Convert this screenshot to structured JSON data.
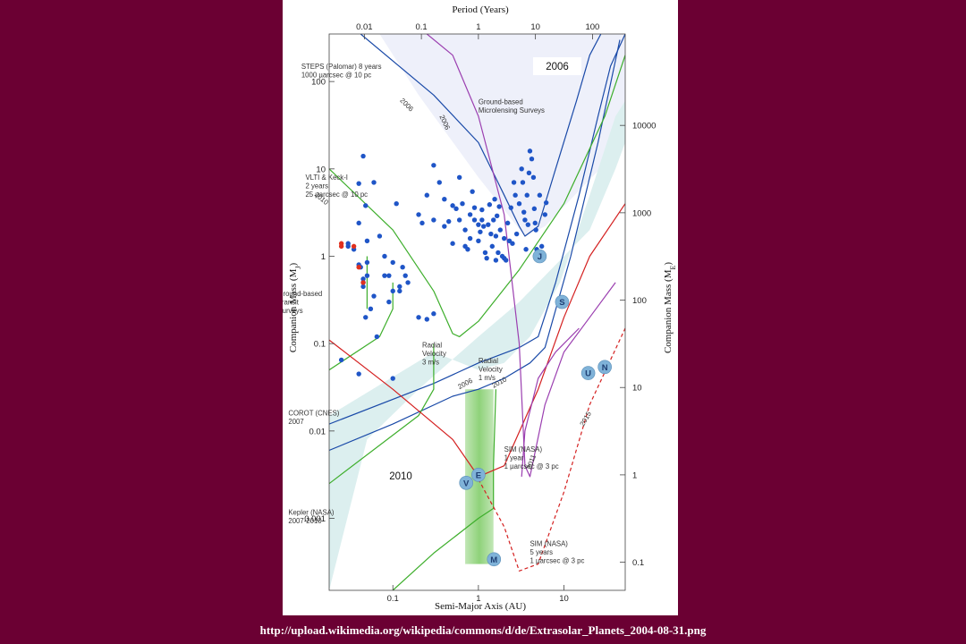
{
  "caption": "http://upload.wikimedia.org/wikipedia/commons/d/de/Extrasolar_Planets_2004-08-31.png",
  "colors": {
    "background": "#6b0033",
    "panel": "#ffffff",
    "plot_fill": "#eef0fa",
    "teal_fill": "#dcefef",
    "planet_dot": "#1f55c7",
    "highlight_dot": "#e0301e",
    "solar_planet": "#7fb2d8",
    "blue_curve": "#1a4aa8",
    "green_curve": "#3dae2b",
    "red_curve": "#d42020",
    "purple_curve": "#9b3fb0",
    "habitable_band": "#8fd27a"
  },
  "chart_data": {
    "type": "scatter",
    "title": "",
    "top_xlabel": "Period (Years)",
    "xlabel": "Semi-Major Axis (AU)",
    "ylabel": "Companion Mass (M",
    "ylabel_sub": "J",
    "y2label": "Companion Mass (M",
    "y2label_sub": "E",
    "xlog": true,
    "ylog": true,
    "xlim": [
      0.018,
      52
    ],
    "ylim": [
      0.00015,
      350
    ],
    "x_ticks": [
      {
        "v": 0.1,
        "label": "0.1"
      },
      {
        "v": 1,
        "label": "1"
      },
      {
        "v": 10,
        "label": "10"
      }
    ],
    "y_ticks": [
      {
        "v": 0.001,
        "label": "0.001"
      },
      {
        "v": 0.01,
        "label": "0.01"
      },
      {
        "v": 0.1,
        "label": "0.1"
      },
      {
        "v": 1,
        "label": "1"
      },
      {
        "v": 10,
        "label": "10"
      },
      {
        "v": 100,
        "label": "100"
      }
    ],
    "top_ticks": [
      {
        "v": 0.01,
        "label": "0.01"
      },
      {
        "v": 0.1,
        "label": "0.1"
      },
      {
        "v": 1,
        "label": "1"
      },
      {
        "v": 10,
        "label": "10"
      },
      {
        "v": 100,
        "label": "100"
      }
    ],
    "right_ticks": [
      {
        "v": 0.1,
        "label": "0.1"
      },
      {
        "v": 1,
        "label": "1"
      },
      {
        "v": 10,
        "label": "10"
      },
      {
        "v": 100,
        "label": "100"
      },
      {
        "v": 1000,
        "label": "1000"
      },
      {
        "v": 10000,
        "label": "10000"
      }
    ],
    "year_labels": {
      "y2006": "2006",
      "y2010": "2010"
    },
    "regions": {
      "upper": [
        [
          0.018,
          350
        ],
        [
          52,
          350
        ],
        [
          52,
          20
        ],
        [
          6,
          2.2
        ],
        [
          3.5,
          1.7
        ],
        [
          1,
          8
        ],
        [
          0.2,
          70
        ],
        [
          0.07,
          350
        ]
      ],
      "teal": [
        [
          0.018,
          0.00015
        ],
        [
          0.018,
          0.015
        ],
        [
          0.3,
          0.08
        ],
        [
          1,
          0.05
        ],
        [
          2,
          0.06
        ],
        [
          4,
          0.12
        ],
        [
          9,
          0.5
        ],
        [
          20,
          5
        ],
        [
          40,
          40
        ],
        [
          52,
          60
        ],
        [
          52,
          20
        ],
        [
          40,
          10
        ],
        [
          20,
          2
        ],
        [
          6,
          0.6
        ],
        [
          3,
          0.3
        ],
        [
          1,
          0.12
        ],
        [
          0.2,
          0.03
        ],
        [
          0.05,
          0.008
        ],
        [
          0.018,
          0.00015
        ]
      ]
    },
    "curves": [
      {
        "color": "#1a4aa8",
        "width": 1.2,
        "dash": false,
        "points": [
          [
            0.042,
            350
          ],
          [
            0.3,
            70
          ],
          [
            1,
            20
          ],
          [
            2,
            5
          ],
          [
            3,
            2.2
          ],
          [
            3.5,
            1.7
          ],
          [
            5,
            2.2
          ],
          [
            8,
            10
          ],
          [
            14,
            60
          ],
          [
            20,
            200
          ],
          [
            27,
            350
          ]
        ]
      },
      {
        "color": "#1a4aa8",
        "width": 1.2,
        "dash": false,
        "points": [
          [
            0.018,
            0.012
          ],
          [
            0.3,
            0.035
          ],
          [
            1,
            0.06
          ],
          [
            3,
            0.09
          ],
          [
            5,
            0.12
          ],
          [
            8,
            0.5
          ],
          [
            15,
            5
          ],
          [
            25,
            40
          ],
          [
            35,
            150
          ],
          [
            52,
            350
          ]
        ]
      },
      {
        "color": "#1a4aa8",
        "width": 1.2,
        "dash": false,
        "points": [
          [
            0.018,
            0.006
          ],
          [
            0.1,
            0.012
          ],
          [
            0.5,
            0.025
          ],
          [
            1,
            0.03
          ],
          [
            2,
            0.04
          ],
          [
            4,
            0.06
          ],
          [
            6,
            0.09
          ],
          [
            12,
            1
          ],
          [
            25,
            20
          ],
          [
            45,
            300
          ]
        ]
      },
      {
        "color": "#3dae2b",
        "width": 1.2,
        "dash": false,
        "points": [
          [
            0.018,
            10
          ],
          [
            0.1,
            2
          ],
          [
            0.3,
            0.4
          ],
          [
            0.5,
            0.13
          ],
          [
            0.6,
            0.12
          ],
          [
            1,
            0.18
          ],
          [
            3,
            0.7
          ],
          [
            10,
            4
          ],
          [
            30,
            40
          ],
          [
            52,
            200
          ]
        ]
      },
      {
        "color": "#3dae2b",
        "width": 1.2,
        "dash": false,
        "points": [
          [
            0.018,
            0.05
          ],
          [
            0.07,
            0.12
          ],
          [
            0.1,
            0.25
          ],
          [
            0.1,
            0.5
          ]
        ]
      },
      {
        "color": "#3dae2b",
        "width": 1.2,
        "dash": false,
        "points": [
          [
            0.018,
            0.0025
          ],
          [
            0.2,
            0.015
          ],
          [
            0.3,
            0.03
          ],
          [
            0.3,
            0.1
          ]
        ]
      },
      {
        "color": "#3dae2b",
        "width": 1.2,
        "dash": false,
        "points": [
          [
            0.1,
            0.00015
          ],
          [
            0.3,
            0.0004
          ],
          [
            1,
            0.001
          ],
          [
            1.5,
            0.0013
          ],
          [
            1.5,
            0.004
          ],
          [
            1.6,
            0.03
          ]
        ]
      },
      {
        "color": "#3dae2b",
        "width": 1.2,
        "dash": false,
        "points": [
          [
            0.05,
            0.25
          ],
          [
            0.05,
            1
          ]
        ]
      },
      {
        "color": "#d42020",
        "width": 1.2,
        "dash": false,
        "points": [
          [
            0.018,
            0.11
          ],
          [
            0.1,
            0.03
          ],
          [
            0.5,
            0.008
          ],
          [
            1,
            0.003
          ],
          [
            2,
            0.004
          ],
          [
            5,
            0.03
          ],
          [
            10,
            0.2
          ],
          [
            20,
            1
          ],
          [
            52,
            4
          ]
        ]
      },
      {
        "color": "#d42020",
        "width": 1.2,
        "dash": true,
        "points": [
          [
            1,
            0.0028
          ],
          [
            2,
            0.0008
          ],
          [
            3,
            0.00025
          ],
          [
            5,
            0.0003
          ],
          [
            10,
            0.002
          ],
          [
            20,
            0.02
          ],
          [
            52,
            0.15
          ]
        ]
      },
      {
        "color": "#9b3fb0",
        "width": 1.2,
        "dash": false,
        "points": [
          [
            0.25,
            350
          ],
          [
            0.5,
            200
          ],
          [
            1,
            40
          ],
          [
            2,
            3
          ],
          [
            3,
            0.1
          ],
          [
            3.5,
            0.004
          ],
          [
            4,
            0.003
          ],
          [
            6,
            0.02
          ],
          [
            10,
            0.08
          ],
          [
            20,
            0.2
          ],
          [
            40,
            0.5
          ]
        ]
      },
      {
        "color": "#9b3fb0",
        "width": 1.2,
        "dash": false,
        "points": [
          [
            3.2,
            0.003
          ],
          [
            3.5,
            0.01
          ],
          [
            5,
            0.04
          ],
          [
            8,
            0.08
          ],
          [
            15,
            0.15
          ]
        ]
      }
    ],
    "habitable_band": {
      "x": [
        0.7,
        1.5
      ],
      "y": [
        0.0003,
        0.03
      ]
    },
    "planets": [
      [
        0.03,
        1.3
      ],
      [
        0.03,
        1.4
      ],
      [
        0.035,
        1.2
      ],
      [
        0.04,
        0.8
      ],
      [
        0.042,
        0.75
      ],
      [
        0.045,
        0.55
      ],
      [
        0.045,
        0.5
      ],
      [
        0.05,
        0.6
      ],
      [
        0.045,
        0.45
      ],
      [
        0.05,
        0.85
      ],
      [
        0.06,
        0.35
      ],
      [
        0.055,
        0.25
      ],
      [
        0.048,
        0.2
      ],
      [
        0.065,
        0.12
      ],
      [
        0.025,
        0.065
      ],
      [
        0.04,
        0.045
      ],
      [
        0.05,
        1.5
      ],
      [
        0.04,
        2.4
      ],
      [
        0.048,
        3.8
      ],
      [
        0.04,
        6.8
      ],
      [
        0.045,
        14
      ],
      [
        0.06,
        7
      ],
      [
        0.07,
        1.7
      ],
      [
        0.08,
        1
      ],
      [
        0.09,
        0.6
      ],
      [
        0.12,
        0.4
      ],
      [
        0.1,
        0.85
      ],
      [
        0.11,
        4
      ],
      [
        0.13,
        0.75
      ],
      [
        0.14,
        0.6
      ],
      [
        0.15,
        0.5
      ],
      [
        0.1,
        0.4
      ],
      [
        0.08,
        0.6
      ],
      [
        0.1,
        0.04
      ],
      [
        0.12,
        0.45
      ],
      [
        0.09,
        0.3
      ],
      [
        0.2,
        0.2
      ],
      [
        0.25,
        0.19
      ],
      [
        0.3,
        0.22
      ],
      [
        0.2,
        3
      ],
      [
        0.25,
        5
      ],
      [
        0.3,
        11
      ],
      [
        0.35,
        7
      ],
      [
        0.4,
        4.5
      ],
      [
        0.45,
        2.5
      ],
      [
        0.5,
        1.4
      ],
      [
        0.55,
        3.5
      ],
      [
        0.6,
        8
      ],
      [
        0.65,
        4
      ],
      [
        0.7,
        2
      ],
      [
        0.75,
        1.2
      ],
      [
        0.8,
        3
      ],
      [
        0.85,
        5.5
      ],
      [
        0.9,
        2.6
      ],
      [
        1,
        1.5
      ],
      [
        1.05,
        1.9
      ],
      [
        1.1,
        3.4
      ],
      [
        1.15,
        2.2
      ],
      [
        1.2,
        1.1
      ],
      [
        1.25,
        0.95
      ],
      [
        1.3,
        2.3
      ],
      [
        1.35,
        3.9
      ],
      [
        1.4,
        1.8
      ],
      [
        1.45,
        1.3
      ],
      [
        1.5,
        2.6
      ],
      [
        1.55,
        4.5
      ],
      [
        1.6,
        1.7
      ],
      [
        1.65,
        2.9
      ],
      [
        1.7,
        1.1
      ],
      [
        1.75,
        3.7
      ],
      [
        1.8,
        2
      ],
      [
        1.9,
        1
      ],
      [
        2,
        1.6
      ],
      [
        2.1,
        0.9
      ],
      [
        2.2,
        2.4
      ],
      [
        2.3,
        1.5
      ],
      [
        2.4,
        3.6
      ],
      [
        2.5,
        1.4
      ],
      [
        2.6,
        7
      ],
      [
        2.7,
        5
      ],
      [
        2.8,
        1.8
      ],
      [
        3,
        4
      ],
      [
        3.2,
        10
      ],
      [
        3.3,
        7
      ],
      [
        3.4,
        3.2
      ],
      [
        3.5,
        2.6
      ],
      [
        3.6,
        1.2
      ],
      [
        3.7,
        5
      ],
      [
        3.8,
        2.3
      ],
      [
        3.9,
        9
      ],
      [
        4,
        16
      ],
      [
        4.2,
        13
      ],
      [
        4.4,
        8
      ],
      [
        4.5,
        3.5
      ],
      [
        4.6,
        2.4
      ],
      [
        4.7,
        2
      ],
      [
        4.8,
        1.2
      ],
      [
        5,
        1.1
      ],
      [
        5.2,
        5
      ],
      [
        5.5,
        1.3
      ],
      [
        6,
        3
      ],
      [
        6.2,
        4.1
      ],
      [
        0.3,
        2.6
      ],
      [
        0.4,
        2.2
      ],
      [
        0.5,
        3.8
      ],
      [
        0.6,
        2.6
      ],
      [
        1,
        2.3
      ],
      [
        1.1,
        2.6
      ],
      [
        0.9,
        3.6
      ],
      [
        0.7,
        1.3
      ],
      [
        0.8,
        1.6
      ],
      [
        1.6,
        0.9
      ],
      [
        2,
        0.95
      ],
      [
        0.22,
        2.4
      ]
    ],
    "highlight_planets": [
      [
        0.025,
        1.4
      ],
      [
        0.025,
        1.3
      ],
      [
        0.035,
        1.3
      ],
      [
        0.04,
        0.75
      ],
      [
        0.045,
        0.5
      ]
    ],
    "solar_system": [
      {
        "label": "J",
        "x": 5.2,
        "y": 1.0
      },
      {
        "label": "S",
        "x": 9.5,
        "y": 0.3
      },
      {
        "label": "U",
        "x": 19.2,
        "y": 0.046
      },
      {
        "label": "N",
        "x": 30,
        "y": 0.054
      },
      {
        "label": "E",
        "x": 1.0,
        "y": 0.00315
      },
      {
        "label": "V",
        "x": 0.72,
        "y": 0.00255
      },
      {
        "label": "M",
        "x": 1.52,
        "y": 0.00034
      }
    ],
    "annotations": [
      {
        "lines": [
          "STEPS (Palomar) 8 years",
          "1000 µarcsec @ 10 pc"
        ],
        "x": 0.0085,
        "y": 140
      },
      {
        "lines": [
          "Ground-based",
          "Microlensing Surveys"
        ],
        "x": 1,
        "y": 55
      },
      {
        "lines": [
          "VLTI & Keck-I",
          "2 years",
          "25 µarcsec @ 10 pc"
        ],
        "x": 0.0095,
        "y": 7.5
      },
      {
        "lines": [
          "Ground-based",
          "Transit",
          "Surveys"
        ],
        "x": 0.0045,
        "y": 0.35
      },
      {
        "lines": [
          "Radial",
          "Velocity",
          "3 m/s"
        ],
        "x": 0.22,
        "y": 0.09
      },
      {
        "lines": [
          "Radial",
          "Velocity",
          "1 m/s"
        ],
        "x": 1,
        "y": 0.06
      },
      {
        "lines": [
          "COROT (CNES)",
          "2007"
        ],
        "x": 0.006,
        "y": 0.015
      },
      {
        "lines": [
          "SIM (NASA)",
          "1 year",
          "1 µarcsec @ 3 pc"
        ],
        "x": 2,
        "y": 0.0058
      },
      {
        "lines": [
          "SIM (NASA)",
          "5 years",
          "1 µarcsec @ 3 pc"
        ],
        "x": 4,
        "y": 0.00048
      },
      {
        "lines": [
          "Kepler (NASA)",
          "2007-2010"
        ],
        "x": 0.006,
        "y": 0.0011
      }
    ],
    "curve_year_labels": [
      {
        "text": "2006",
        "x": 0.12,
        "y": 60,
        "rot": 45
      },
      {
        "text": "2006",
        "x": 0.35,
        "y": 40,
        "rot": 65
      },
      {
        "text": "2010",
        "x": 0.012,
        "y": 5,
        "rot": 40
      },
      {
        "text": "2006",
        "x": 0.6,
        "y": 0.03,
        "rot": -28
      },
      {
        "text": "2010",
        "x": 1.5,
        "y": 0.031,
        "rot": -28
      },
      {
        "text": "2011",
        "x": 4.1,
        "y": 0.0036,
        "rot": -70
      },
      {
        "text": "2015",
        "x": 17,
        "y": 0.0112,
        "rot": -60
      }
    ],
    "legend": "none"
  }
}
